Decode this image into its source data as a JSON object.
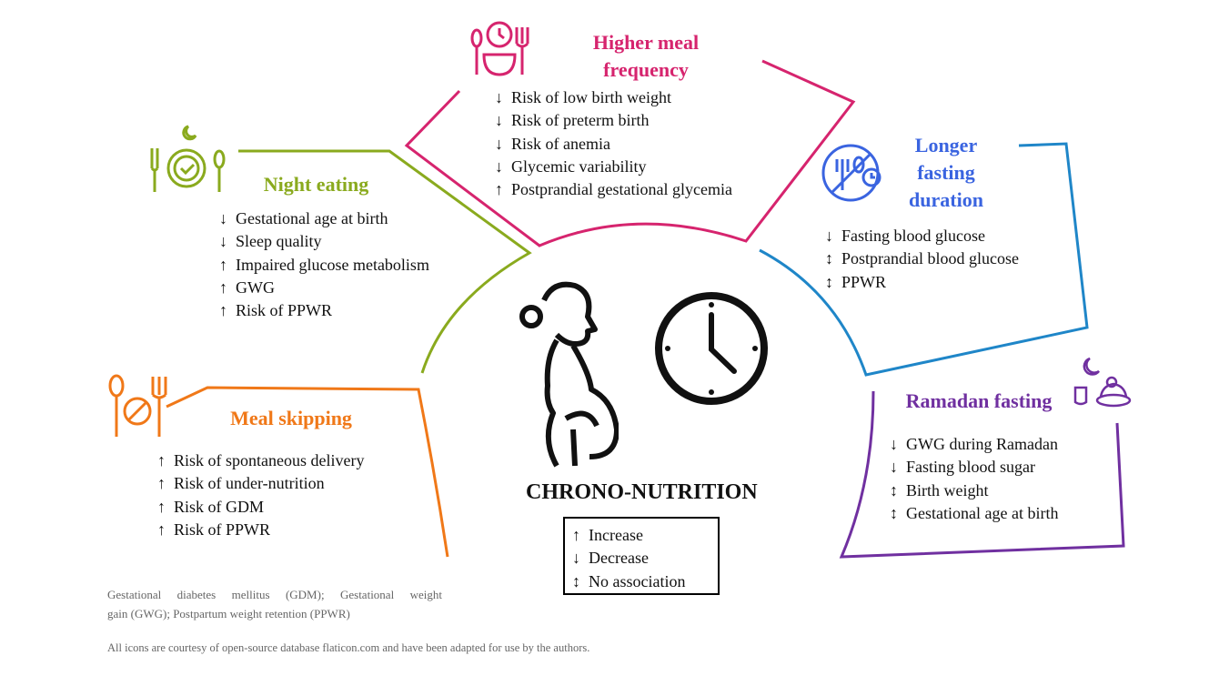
{
  "center": {
    "title": "CHRONO-NUTRITION"
  },
  "legend": [
    {
      "arrow": "↑",
      "label": "Increase"
    },
    {
      "arrow": "↓",
      "label": "Decrease"
    },
    {
      "arrow": "↕",
      "label": "No association"
    }
  ],
  "colors": {
    "higher_meal_frequency": "#d6246e",
    "night_eating": "#8aaa1e",
    "longer_fasting": "#3a64e0",
    "longer_fasting_line": "#1f86c8",
    "meal_skipping": "#f07818",
    "ramadan": "#7030a0"
  },
  "icons": {
    "higher_meal_frequency": "clock-plate-cutlery-icon",
    "night_eating": "moon-plate-check-icon",
    "longer_fasting": "no-eating-clock-icon",
    "meal_skipping": "no-plate-cutlery-icon",
    "ramadan": "moon-food-icon",
    "center_woman": "pregnant-woman-icon",
    "center_clock": "clock-icon"
  },
  "sections": {
    "higher_meal_frequency": {
      "title_line1": "Higher meal",
      "title_line2": "frequency",
      "items": [
        {
          "arrow": "↓",
          "text": "Risk of low birth weight"
        },
        {
          "arrow": "↓",
          "text": "Risk of preterm birth"
        },
        {
          "arrow": "↓",
          "text": "Risk of anemia"
        },
        {
          "arrow": "↓",
          "text": "Glycemic variability"
        },
        {
          "arrow": "↑",
          "text": "Postprandial gestational glycemia"
        }
      ]
    },
    "night_eating": {
      "title": "Night eating",
      "items": [
        {
          "arrow": "↓",
          "text": "Gestational age at birth"
        },
        {
          "arrow": "↓",
          "text": "Sleep quality"
        },
        {
          "arrow": "↑",
          "text": "Impaired glucose metabolism"
        },
        {
          "arrow": "↑",
          "text": "GWG"
        },
        {
          "arrow": "↑",
          "text": "Risk of PPWR"
        }
      ]
    },
    "longer_fasting": {
      "title_line1": "Longer",
      "title_line2": "fasting",
      "title_line3": "duration",
      "items": [
        {
          "arrow": "↓",
          "text": "Fasting blood glucose"
        },
        {
          "arrow": "↕",
          "text": "Postprandial blood glucose"
        },
        {
          "arrow": "↕",
          "text": "PPWR"
        }
      ]
    },
    "meal_skipping": {
      "title": "Meal skipping",
      "items": [
        {
          "arrow": "↑",
          "text": "Risk of spontaneous delivery"
        },
        {
          "arrow": "↑",
          "text": "Risk of under-nutrition"
        },
        {
          "arrow": "↑",
          "text": "Risk of GDM"
        },
        {
          "arrow": "↑",
          "text": "Risk of PPWR"
        }
      ]
    },
    "ramadan": {
      "title": "Ramadan fasting",
      "items": [
        {
          "arrow": "↓",
          "text": "GWG during Ramadan"
        },
        {
          "arrow": "↓",
          "text": "Fasting blood sugar"
        },
        {
          "arrow": "↕",
          "text": "Birth weight"
        },
        {
          "arrow": "↕",
          "text": "Gestational age at birth"
        }
      ]
    }
  },
  "footnotes": {
    "abbrev_line1": "Gestational diabetes mellitus (GDM); Gestational weight",
    "abbrev_line2": "gain (GWG); Postpartum weight retention (PPWR)",
    "credit": "All icons are courtesy of open-source database flaticon.com and have been adapted for use by the authors."
  }
}
